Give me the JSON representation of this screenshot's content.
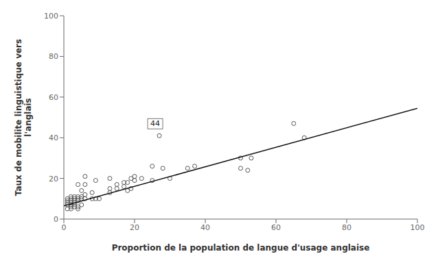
{
  "chart_data": {
    "type": "scatter",
    "xlabel": "Proportion de la population de langue d'usage anglaise",
    "ylabel": "Taux de mobilite linguistique vers\nl'anglais",
    "xlim": [
      0,
      100
    ],
    "ylim": [
      0,
      100
    ],
    "xticks": [
      0,
      20,
      40,
      60,
      80,
      100
    ],
    "yticks": [
      0,
      20,
      40,
      60,
      80,
      100
    ],
    "grid": false,
    "series": [
      {
        "type": "scatter",
        "marker": "circle",
        "color": "#555555",
        "x": [
          1,
          1,
          1,
          1,
          1,
          2,
          2,
          2,
          2,
          2,
          2,
          2,
          3,
          3,
          3,
          3,
          3,
          3,
          4,
          4,
          4,
          4,
          4,
          4,
          5,
          5,
          5,
          5,
          6,
          6,
          6,
          6,
          8,
          8,
          9,
          9,
          10,
          13,
          13,
          13,
          15,
          15,
          17,
          17,
          18,
          18,
          19,
          19,
          20,
          20,
          22,
          25,
          25,
          27,
          28,
          30,
          35,
          37,
          50,
          50,
          52,
          53,
          65,
          68
        ],
        "values": [
          5,
          7,
          8,
          9,
          10,
          5,
          6,
          7,
          8,
          9,
          10,
          11,
          6,
          7,
          8,
          9,
          10,
          11,
          5,
          6,
          9,
          10,
          11,
          17,
          7,
          10,
          11,
          14,
          10,
          12,
          17,
          21,
          10,
          13,
          10,
          19,
          10,
          13,
          15,
          20,
          15,
          17,
          16,
          18,
          14,
          18,
          15,
          20,
          19,
          21,
          20,
          19,
          26,
          41,
          25,
          20,
          25,
          26,
          25,
          30,
          24,
          30,
          47,
          40
        ]
      },
      {
        "type": "line",
        "line_style": "solid",
        "color": "#111111",
        "x": [
          0,
          100
        ],
        "values": [
          6.5,
          54.5
        ]
      }
    ],
    "annotations": [
      {
        "text": "44",
        "x": 27,
        "y": 41
      }
    ]
  }
}
